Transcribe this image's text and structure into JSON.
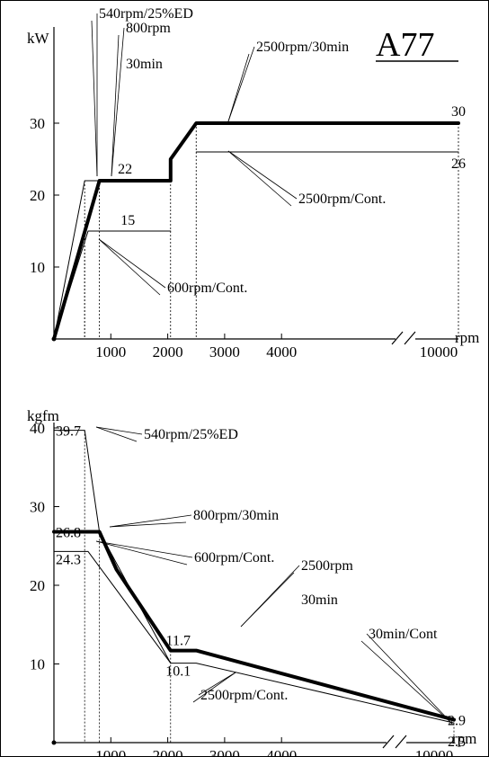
{
  "chart_data": [
    {
      "type": "line",
      "title": "",
      "badge": "A77",
      "ylabel": "kW",
      "xlabel": "rpm",
      "ylim": [
        0,
        35
      ],
      "y_ticks": [
        "10",
        "20",
        "30"
      ],
      "x_ticks": [
        "1000",
        "2000",
        "3000",
        "4000",
        "10000"
      ],
      "grid": false,
      "series": [
        {
          "style": "bold",
          "x": [
            0,
            800,
            2050,
            2050,
            2500,
            10000
          ],
          "y": [
            0,
            22,
            22,
            25,
            30,
            30
          ]
        },
        {
          "style": "thin",
          "x": [
            0,
            540,
            800
          ],
          "y": [
            0,
            22,
            22
          ]
        },
        {
          "style": "thin",
          "x": [
            0,
            600,
            2050
          ],
          "y": [
            0,
            15,
            15
          ]
        },
        {
          "style": "thin",
          "x": [
            2500,
            10000
          ],
          "y": [
            26,
            26
          ]
        }
      ],
      "value_labels": [
        {
          "text": "22",
          "x": 1250,
          "y": 22
        },
        {
          "text": "15",
          "x": 1300,
          "y": 15
        },
        {
          "text": "30",
          "x": 5800,
          "y": 30
        },
        {
          "text": "26",
          "x": 5800,
          "y": 26
        }
      ],
      "annotations": [
        {
          "text": "540rpm/25%ED",
          "x": 540,
          "y": 22
        },
        {
          "text": "800rpm",
          "text2": "30min",
          "x": 800,
          "y": 22
        },
        {
          "text": "2500rpm/30min",
          "x": 2500,
          "y": 30
        },
        {
          "text": "2500rpm/Cont.",
          "x": 2500,
          "y": 26
        },
        {
          "text": "600rpm/Cont.",
          "x": 600,
          "y": 15
        }
      ]
    },
    {
      "type": "line",
      "title": "",
      "ylabel": "kgfm",
      "xlabel": "rpm",
      "ylim": [
        0,
        42
      ],
      "y_ticks": [
        "10",
        "20",
        "30",
        "40"
      ],
      "x_ticks": [
        "1000",
        "2000",
        "3000",
        "4000",
        "10000"
      ],
      "grid": false,
      "series": [
        {
          "style": "bold",
          "x": [
            0,
            540,
            800,
            1100,
            2050,
            2050,
            2500,
            10000
          ],
          "y": [
            26.8,
            26.8,
            26.8,
            22,
            11.7,
            11.7,
            11.7,
            2.9
          ]
        },
        {
          "style": "thin",
          "x": [
            0,
            540,
            800,
            2050
          ],
          "y": [
            39.7,
            39.7,
            26.8,
            10.1
          ]
        },
        {
          "style": "thin",
          "x": [
            0,
            600,
            2050
          ],
          "y": [
            24.3,
            24.3,
            10.1
          ]
        },
        {
          "style": "thin",
          "x": [
            2050,
            2500,
            10000
          ],
          "y": [
            10.1,
            10.1,
            2.5
          ]
        }
      ],
      "value_labels": [
        {
          "text": "39.7",
          "x": 0,
          "y": 39.7
        },
        {
          "text": "26.8",
          "x": 0,
          "y": 26.8
        },
        {
          "text": "24.3",
          "x": 0,
          "y": 24.3
        },
        {
          "text": "11.7",
          "x": 2500,
          "y": 11.7
        },
        {
          "text": "10.1",
          "x": 2500,
          "y": 10.1
        },
        {
          "text": "2.9",
          "x": 10000,
          "y": 2.9
        },
        {
          "text": "2.5",
          "x": 10000,
          "y": 2.5
        }
      ],
      "annotations": [
        {
          "text": "540rpm/25%ED",
          "x": 540,
          "y": 39.7
        },
        {
          "text": "800rpm/30min",
          "x": 800,
          "y": 26.8
        },
        {
          "text": "600rpm/Cont.",
          "x": 600,
          "y": 24.3
        },
        {
          "text": "2500rpm",
          "text2": "30min",
          "x": 2500,
          "y": 11.7
        },
        {
          "text": "2500rpm/Cont.",
          "x": 2500,
          "y": 10.1
        },
        {
          "text": "30min/Cont",
          "x": 10000,
          "y": 2.9
        }
      ]
    }
  ]
}
